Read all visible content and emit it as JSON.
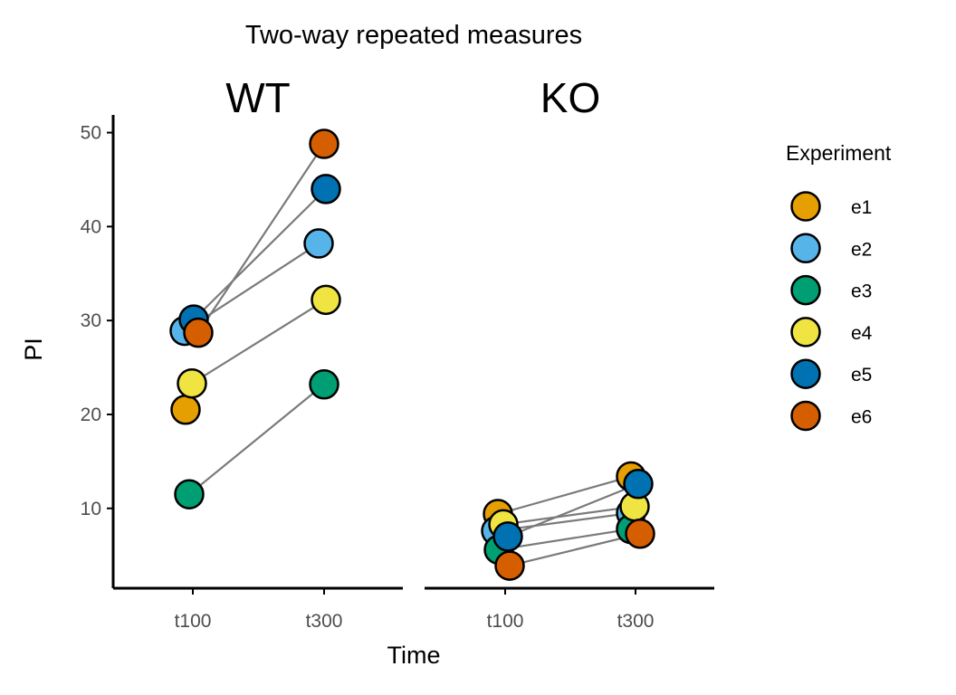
{
  "chart_data": {
    "type": "scatter",
    "title": "Two-way repeated measures",
    "xlabel": "Time",
    "ylabel": "PI",
    "ylim": [
      1.5,
      51.5
    ],
    "yticks": [
      10,
      20,
      30,
      40,
      50
    ],
    "categories": [
      "t100",
      "t300"
    ],
    "legend": {
      "title": "Experiment",
      "position": "right",
      "entries": [
        "e1",
        "e2",
        "e3",
        "e4",
        "e5",
        "e6"
      ]
    },
    "colors": {
      "e1": "#E69F00",
      "e2": "#56B4E9",
      "e3": "#009E73",
      "e4": "#F0E442",
      "e5": "#0072B2",
      "e6": "#D55E00"
    },
    "panels": [
      {
        "label": "WT",
        "series": [
          {
            "name": "e1",
            "values": [
              20.5,
              null
            ]
          },
          {
            "name": "e2",
            "values": [
              28.9,
              38.2
            ]
          },
          {
            "name": "e3",
            "values": [
              11.5,
              23.2
            ]
          },
          {
            "name": "e4",
            "values": [
              23.3,
              32.2
            ]
          },
          {
            "name": "e5",
            "values": [
              30.1,
              44.0
            ]
          },
          {
            "name": "e6",
            "values": [
              28.7,
              48.8
            ]
          }
        ]
      },
      {
        "label": "KO",
        "series": [
          {
            "name": "e1",
            "values": [
              9.4,
              13.4
            ]
          },
          {
            "name": "e2",
            "values": [
              7.6,
              9.5
            ]
          },
          {
            "name": "e3",
            "values": [
              5.6,
              7.8
            ]
          },
          {
            "name": "e4",
            "values": [
              8.3,
              10.2
            ]
          },
          {
            "name": "e5",
            "values": [
              7.0,
              12.6
            ]
          },
          {
            "name": "e6",
            "values": [
              3.9,
              7.3
            ]
          }
        ]
      }
    ]
  }
}
